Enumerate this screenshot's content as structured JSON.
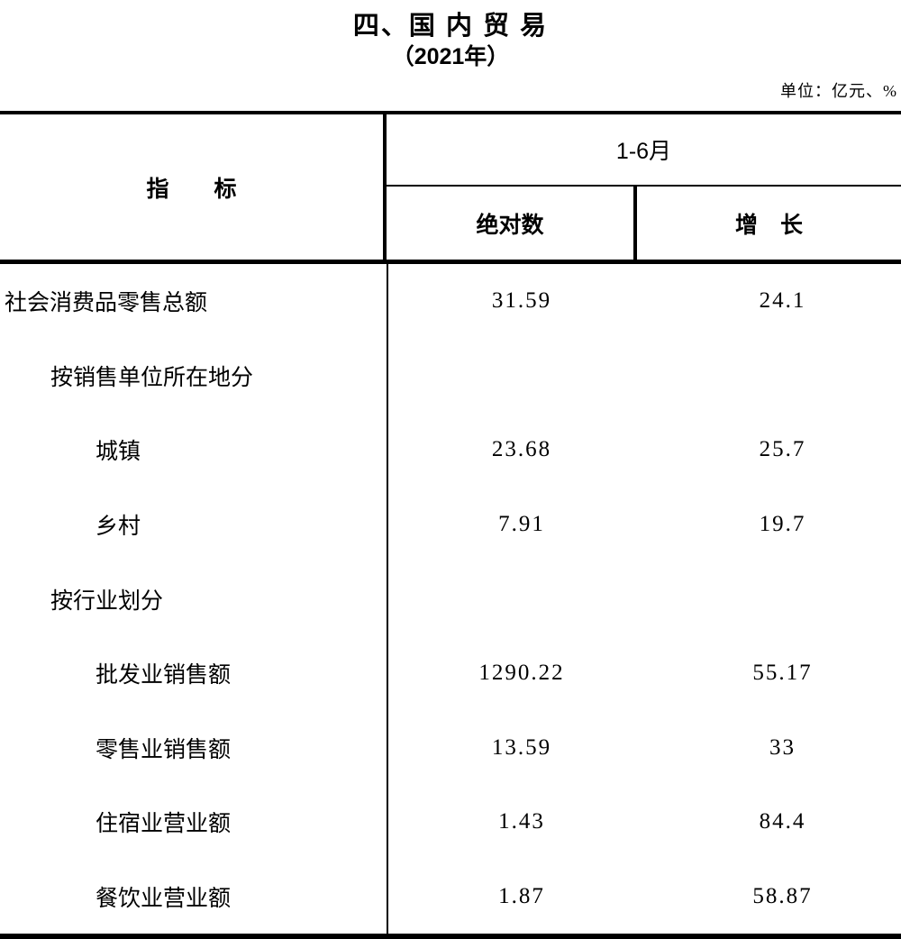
{
  "page": {
    "title": "四、国 内 贸 易",
    "subtitle": "（2021年）",
    "unit_note": "单位：亿元、%"
  },
  "table": {
    "header": {
      "indicator": "指　　标",
      "period": "1-6月",
      "col_absolute": "绝对数",
      "col_growth": "增　长"
    },
    "rows": [
      {
        "label": "社会消费品零售总额",
        "absolute": "31.59",
        "growth": "24.1",
        "indent": 0
      },
      {
        "label": "按销售单位所在地分",
        "absolute": "",
        "growth": "",
        "indent": 1
      },
      {
        "label": "城镇",
        "absolute": "23.68",
        "growth": "25.7",
        "indent": 2
      },
      {
        "label": "乡村",
        "absolute": "7.91",
        "growth": "19.7",
        "indent": 2
      },
      {
        "label": "按行业划分",
        "absolute": "",
        "growth": "",
        "indent": 1
      },
      {
        "label": "批发业销售额",
        "absolute": "1290.22",
        "growth": "55.17",
        "indent": 2
      },
      {
        "label": "零售业销售额",
        "absolute": "13.59",
        "growth": "33",
        "indent": 2
      },
      {
        "label": "住宿业营业额",
        "absolute": "1.43",
        "growth": "84.4",
        "indent": 2
      },
      {
        "label": "餐饮业营业额",
        "absolute": "1.87",
        "growth": "58.87",
        "indent": 2
      }
    ],
    "colors": {
      "border": "#000000",
      "text": "#000000",
      "background": "#ffffff"
    }
  }
}
